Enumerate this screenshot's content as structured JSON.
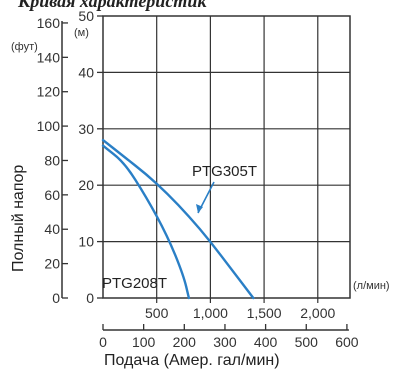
{
  "header": {
    "title": "Кривая характеристик"
  },
  "chart_data": {
    "type": "line",
    "ylabel": "Полный напор",
    "xlabel": "Подача (Амер. гал/мин)",
    "units": {
      "y_left_ft": "(фут)",
      "y_right_m": "(м)",
      "x_top_lpm": "(л/мин)"
    },
    "y_ft_ticks": [
      0,
      20,
      40,
      60,
      80,
      100,
      120,
      140,
      160
    ],
    "y_m_ticks": [
      0,
      10,
      20,
      30,
      40,
      50
    ],
    "x_lpm_ticks": [
      500,
      1000,
      1500,
      2000
    ],
    "x_lpm_tick_labels": [
      "500",
      "1,000",
      "1,500",
      "2,000"
    ],
    "x_gpm_ticks": [
      0,
      100,
      200,
      300,
      400,
      500,
      600
    ],
    "xlim_lpm": [
      0,
      2300
    ],
    "ylim_m": [
      0,
      50
    ],
    "grid": true,
    "series": [
      {
        "name": "PTG208T",
        "x_lpm": [
          0,
          200,
          400,
          600,
          750,
          800
        ],
        "y_m": [
          27,
          24,
          18,
          11,
          4,
          0
        ]
      },
      {
        "name": "PTG305T",
        "x_lpm": [
          0,
          200,
          400,
          600,
          800,
          1000,
          1200,
          1400
        ],
        "y_m": [
          28,
          25,
          22,
          18.5,
          14.5,
          10,
          5,
          0
        ]
      }
    ]
  }
}
